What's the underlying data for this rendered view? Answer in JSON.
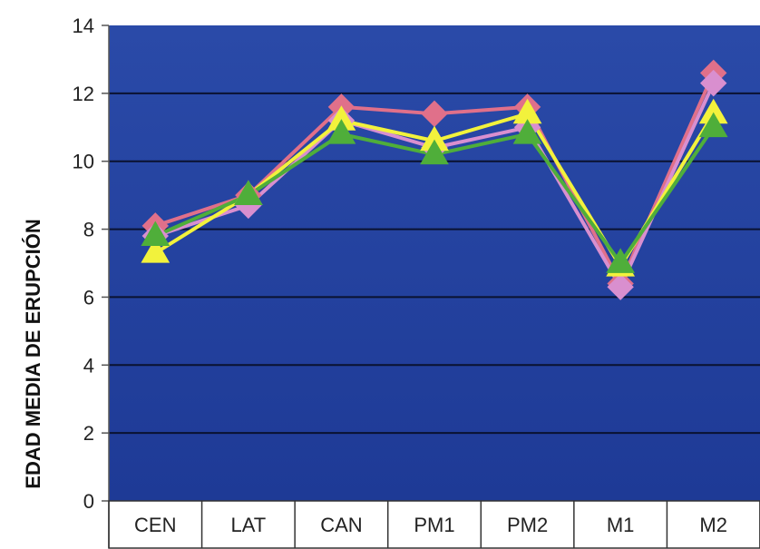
{
  "chart_data": {
    "type": "line",
    "title": "",
    "xlabel": "",
    "ylabel": "EDAD MEDIA DE ERUPCIÓN",
    "ylim": [
      0,
      14
    ],
    "yticks": [
      0,
      2,
      4,
      6,
      8,
      10,
      12,
      14
    ],
    "grid": true,
    "legend": "none",
    "categories": [
      "CEN",
      "LAT",
      "CAN",
      "PM1",
      "PM2",
      "M1",
      "M2"
    ],
    "series": [
      {
        "values": [
          8.1,
          9.0,
          11.6,
          11.4,
          11.6,
          6.4,
          12.6
        ],
        "color": "#e0708a",
        "marker": "diamond"
      },
      {
        "values": [
          7.8,
          8.7,
          11.2,
          10.4,
          11.0,
          6.3,
          12.3
        ],
        "color": "#d98fcf",
        "marker": "diamond"
      },
      {
        "values": [
          7.3,
          9.0,
          11.2,
          10.6,
          11.4,
          6.9,
          11.4
        ],
        "color": "#f2f23c",
        "marker": "triangle"
      },
      {
        "values": [
          7.8,
          9.0,
          10.8,
          10.2,
          10.8,
          7.0,
          11.0
        ],
        "color": "#4fae3a",
        "marker": "triangle"
      }
    ],
    "plot_background": "#1f3c9c",
    "category_box_color": "#ffffff"
  }
}
